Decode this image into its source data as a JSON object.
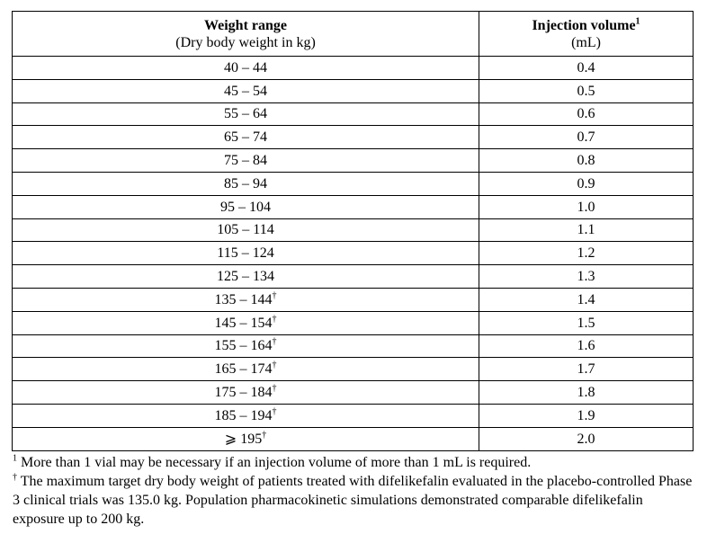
{
  "table": {
    "header": {
      "col1_title": "Weight range",
      "col1_sub": "(Dry body weight in kg)",
      "col2_title": "Injection volume",
      "col2_title_sup": "1",
      "col2_sub": "(mL)"
    },
    "rows": [
      {
        "range": "40 – 44",
        "mark": "",
        "volume": "0.4"
      },
      {
        "range": "45 – 54",
        "mark": "",
        "volume": "0.5"
      },
      {
        "range": "55 – 64",
        "mark": "",
        "volume": "0.6"
      },
      {
        "range": "65 – 74",
        "mark": "",
        "volume": "0.7"
      },
      {
        "range": "75 – 84",
        "mark": "",
        "volume": "0.8"
      },
      {
        "range": "85 – 94",
        "mark": "",
        "volume": "0.9"
      },
      {
        "range": "95 – 104",
        "mark": "",
        "volume": "1.0"
      },
      {
        "range": "105 – 114",
        "mark": "",
        "volume": "1.1"
      },
      {
        "range": "115 – 124",
        "mark": "",
        "volume": "1.2"
      },
      {
        "range": "125 – 134",
        "mark": "",
        "volume": "1.3"
      },
      {
        "range": "135 – 144",
        "mark": "†",
        "volume": "1.4"
      },
      {
        "range": "145 – 154",
        "mark": "†",
        "volume": "1.5"
      },
      {
        "range": "155 – 164",
        "mark": "†",
        "volume": "1.6"
      },
      {
        "range": "165 – 174",
        "mark": "†",
        "volume": "1.7"
      },
      {
        "range": "175 – 184",
        "mark": "†",
        "volume": "1.8"
      },
      {
        "range": "185 – 194",
        "mark": "†",
        "volume": "1.9"
      },
      {
        "range": "⩾ 195",
        "mark": "†",
        "volume": "2.0"
      }
    ]
  },
  "footnotes": {
    "note1_marker": "1",
    "note1_text": " More than 1 vial may be necessary if an injection volume of more than 1 mL is required.",
    "note2_marker": "†",
    "note2_text": " The maximum target dry body weight of patients treated with difelikefalin evaluated in the placebo-controlled Phase 3 clinical trials was 135.0 kg. Population pharmacokinetic simulations demonstrated comparable difelikefalin exposure up to 200 kg."
  }
}
